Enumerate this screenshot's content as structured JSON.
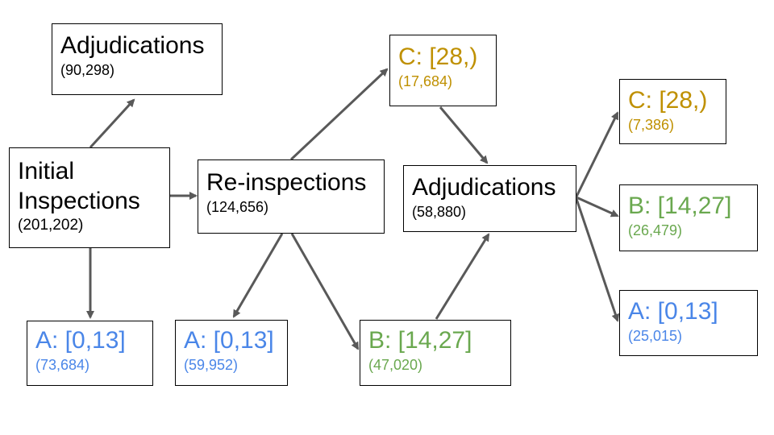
{
  "colors": {
    "black": "#000000",
    "grade_a": "#4a86e8",
    "grade_b": "#6aa84f",
    "grade_c": "#bf9000",
    "arrow": "#595959"
  },
  "nodes": {
    "initial_inspections": {
      "title_line1": "Initial",
      "title_line2": "Inspections",
      "count": "(201,202)"
    },
    "adjudications_top": {
      "title": "Adjudications",
      "count": "(90,298)"
    },
    "initial_grade_a": {
      "title": "A: [0,13]",
      "count": "(73,684)"
    },
    "reinspections": {
      "title": "Re-inspections",
      "count": "(124,656)"
    },
    "reinspection_grade_a": {
      "title": "A: [0,13]",
      "count": "(59,952)"
    },
    "reinspection_grade_b": {
      "title": "B: [14,27]",
      "count": "(47,020)"
    },
    "reinspection_grade_c": {
      "title": "C: [28,)",
      "count": "(17,684)"
    },
    "adjudications_mid": {
      "title": "Adjudications",
      "count": "(58,880)"
    },
    "final_grade_c": {
      "title": "C: [28,)",
      "count": "(7,386)"
    },
    "final_grade_b": {
      "title": "B: [14,27]",
      "count": "(26,479)"
    },
    "final_grade_a": {
      "title": "A: [0,13]",
      "count": "(25,015)"
    }
  },
  "edges": [
    {
      "from": "initial_inspections",
      "to": "adjudications_top"
    },
    {
      "from": "initial_inspections",
      "to": "reinspections"
    },
    {
      "from": "initial_inspections",
      "to": "initial_grade_a"
    },
    {
      "from": "reinspections",
      "to": "reinspection_grade_c"
    },
    {
      "from": "reinspections",
      "to": "reinspection_grade_a"
    },
    {
      "from": "reinspections",
      "to": "reinspection_grade_b"
    },
    {
      "from": "reinspection_grade_c",
      "to": "adjudications_mid"
    },
    {
      "from": "reinspection_grade_b",
      "to": "adjudications_mid"
    },
    {
      "from": "adjudications_mid",
      "to": "final_grade_c"
    },
    {
      "from": "adjudications_mid",
      "to": "final_grade_b"
    },
    {
      "from": "adjudications_mid",
      "to": "final_grade_a"
    }
  ]
}
